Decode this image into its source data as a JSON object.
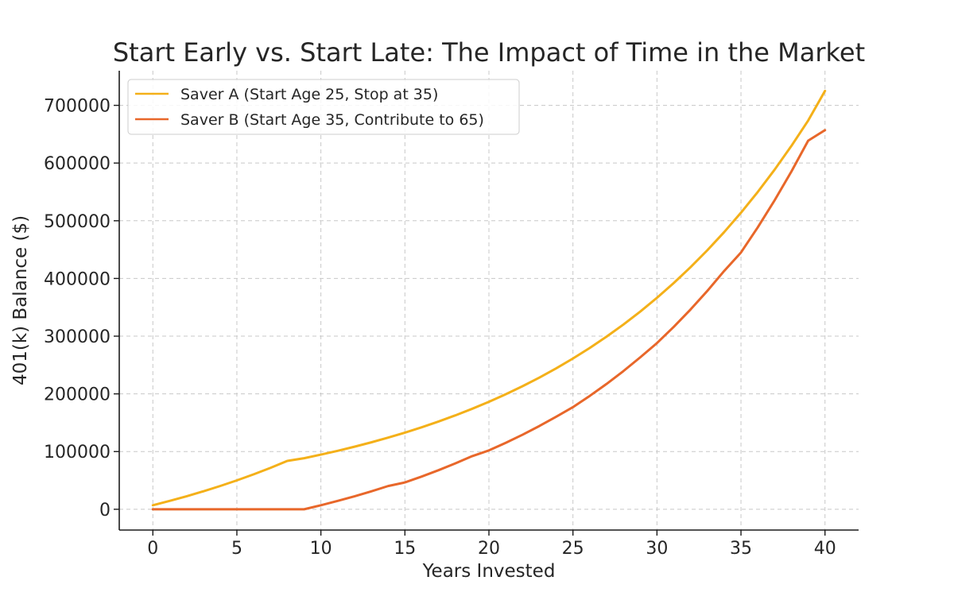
{
  "chart_data": {
    "type": "line",
    "title": "Start Early vs. Start Late: The Impact of Time in the Market",
    "xlabel": "Years Invested",
    "ylabel": "401(k) Balance ($)",
    "xlim": [
      -2,
      42
    ],
    "ylim": [
      -36000,
      760000
    ],
    "x_ticks": [
      0,
      5,
      10,
      15,
      20,
      25,
      30,
      35,
      40
    ],
    "y_ticks": [
      0,
      100000,
      200000,
      300000,
      400000,
      500000,
      600000,
      700000
    ],
    "grid": true,
    "legend_position": "top-left",
    "series": [
      {
        "name": "Saver A (Start Age 25, Stop at 35)",
        "color": "#f4b019",
        "x": [
          0,
          1,
          2,
          3,
          4,
          5,
          6,
          7,
          8,
          9,
          10,
          11,
          12,
          13,
          14,
          15,
          16,
          17,
          18,
          19,
          20,
          21,
          22,
          23,
          24,
          25,
          26,
          27,
          28,
          29,
          30,
          31,
          32,
          33,
          34,
          35,
          36,
          37,
          38,
          39,
          40
        ],
        "y": [
          7000,
          14490,
          22500,
          31080,
          40250,
          50060,
          60570,
          71810,
          83830,
          88500,
          94700,
          101330,
          108420,
          116010,
          124130,
          132820,
          142120,
          152070,
          162710,
          174100,
          186290,
          199330,
          213280,
          228210,
          244190,
          261280,
          279570,
          299140,
          320080,
          342490,
          366460,
          392110,
          419560,
          448930,
          480360,
          513980,
          549960,
          588460,
          629650,
          673730,
          725000
        ]
      },
      {
        "name": "Saver B (Start Age 35, Contribute to 65)",
        "color": "#e8672a",
        "x": [
          0,
          1,
          2,
          3,
          4,
          5,
          6,
          7,
          8,
          9,
          10,
          11,
          12,
          13,
          14,
          15,
          16,
          17,
          18,
          19,
          20,
          21,
          22,
          23,
          24,
          25,
          26,
          27,
          28,
          29,
          30,
          31,
          32,
          33,
          34,
          35,
          36,
          37,
          38,
          39,
          40
        ],
        "y": [
          0,
          0,
          0,
          0,
          0,
          0,
          0,
          0,
          0,
          0,
          7000,
          14490,
          22500,
          31080,
          40250,
          46500,
          56755,
          67728,
          79469,
          92032,
          102000,
          115140,
          129200,
          144240,
          160340,
          177000,
          196460,
          217210,
          239420,
          263180,
          288000,
          316160,
          346290,
          378530,
          413030,
          445000,
          488640,
          535340,
          585310,
          638780,
          657000
        ]
      }
    ]
  }
}
